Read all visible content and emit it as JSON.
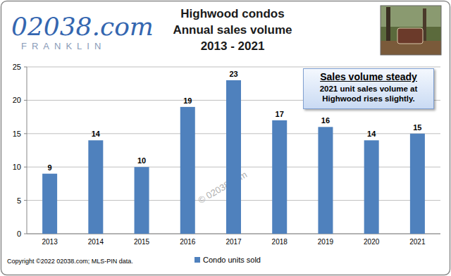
{
  "chart_data": {
    "type": "bar",
    "title": "Highwood condos\nAnnual sales volume\n2013 - 2021",
    "logo": "02038.com",
    "logo_subtitle": "FRANKLIN",
    "annotation_title": "Sales volume steady",
    "annotation": "2021 unit sales volume at Highwood rises slightly.",
    "watermark": "© 02038.com",
    "footnote": "Copyright ©2022 02038.com; MLS-PIN data.",
    "categories": [
      "2013",
      "2014",
      "2015",
      "2016",
      "2017",
      "2018",
      "2019",
      "2020",
      "2021"
    ],
    "series": [
      {
        "name": "Condo units sold",
        "color": "#4f81bd",
        "values": [
          9,
          14,
          10,
          19,
          23,
          17,
          16,
          14,
          15
        ]
      }
    ],
    "ylim": [
      0,
      25
    ],
    "yticks": [
      0,
      5,
      10,
      15,
      20,
      25
    ],
    "grid": true,
    "legend": "bottom",
    "data_labels": true
  }
}
